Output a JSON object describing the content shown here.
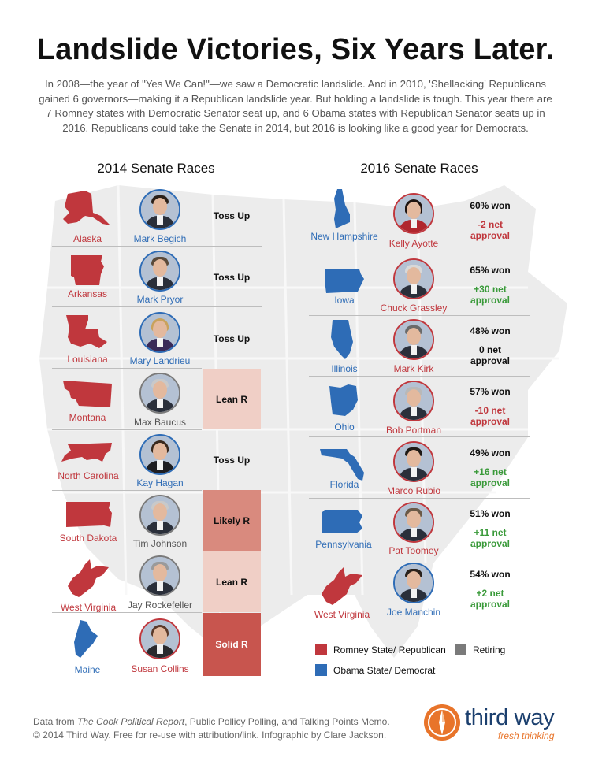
{
  "header": {
    "title": "Landslide Victories, Six Years Later.",
    "intro": "In 2008—the year of \"Yes We Can!\"—we saw a Democratic landslide. And in 2010, 'Shellacking' Republicans gained 6 governors—making it a Republican landslide year. But holding a landslide is tough. This year there are 7 Romney states with Democratic Senator seat up, and 6 Obama states with Republican Senator seats up in 2016. Republicans could take the Senate in 2014, but 2016 is looking like a good year for Democrats."
  },
  "races_2014": {
    "title": "2014 Senate Races",
    "rows": [
      {
        "state": "Alaska",
        "senator": "Mark Begich",
        "rating": "Toss Up",
        "state_party": "red",
        "senator_party": "blue"
      },
      {
        "state": "Arkansas",
        "senator": "Mark Pryor",
        "rating": "Toss Up",
        "state_party": "red",
        "senator_party": "blue"
      },
      {
        "state": "Louisiana",
        "senator": "Mary Landrieu",
        "rating": "Toss Up",
        "state_party": "red",
        "senator_party": "blue"
      },
      {
        "state": "Montana",
        "senator": "Max Baucus",
        "rating": "Lean R",
        "state_party": "red",
        "senator_party": "gray"
      },
      {
        "state": "North Carolina",
        "senator": "Kay Hagan",
        "rating": "Toss Up",
        "state_party": "red",
        "senator_party": "blue"
      },
      {
        "state": "South Dakota",
        "senator": "Tim Johnson",
        "rating": "Likely R",
        "state_party": "red",
        "senator_party": "gray"
      },
      {
        "state": "West Virginia",
        "senator": "Jay Rockefeller",
        "rating": "Lean R",
        "state_party": "red",
        "senator_party": "gray"
      },
      {
        "state": "Maine",
        "senator": "Susan Collins",
        "rating": "Solid R",
        "state_party": "blue",
        "senator_party": "red"
      }
    ]
  },
  "races_2016": {
    "title": "2016 Senate Races",
    "rows": [
      {
        "state": "New Hampshire",
        "senator": "Kelly Ayotte",
        "won": "60% won",
        "approval": "-2 net approval",
        "state_party": "blue",
        "senator_party": "red",
        "sign": "neg"
      },
      {
        "state": "Iowa",
        "senator": "Chuck Grassley",
        "won": "65% won",
        "approval": "+30 net approval",
        "state_party": "blue",
        "senator_party": "red",
        "sign": "pos"
      },
      {
        "state": "Illinois",
        "senator": "Mark Kirk",
        "won": "48% won",
        "approval": "0 net approval",
        "state_party": "blue",
        "senator_party": "red",
        "sign": "zero"
      },
      {
        "state": "Ohio",
        "senator": "Bob Portman",
        "won": "57% won",
        "approval": "-10 net approval",
        "state_party": "blue",
        "senator_party": "red",
        "sign": "neg"
      },
      {
        "state": "Florida",
        "senator": "Marco Rubio",
        "won": "49% won",
        "approval": "+16 net approval",
        "state_party": "blue",
        "senator_party": "red",
        "sign": "pos"
      },
      {
        "state": "Pennsylvania",
        "senator": "Pat Toomey",
        "won": "51% won",
        "approval": "+11 net approval",
        "state_party": "blue",
        "senator_party": "red",
        "sign": "pos"
      },
      {
        "state": "West Virginia",
        "senator": "Joe Manchin",
        "won": "54% won",
        "approval": "+2 net approval",
        "state_party": "red",
        "senator_party": "blue",
        "sign": "pos"
      }
    ]
  },
  "legend": {
    "republican": "Romney State/ Republican",
    "democrat": "Obama State/ Democrat",
    "retiring": "Retiring"
  },
  "footer": {
    "source_prefix": "Data from ",
    "source_italic": "The Cook Political Report",
    "source_suffix": ", Public Pollicy Polling, and Talking Points Memo.",
    "line2": "© 2014 Third Way. Free for re-use with attribution/link. Infographic by Clare Jackson."
  },
  "logo": {
    "name": "third way",
    "tagline": "fresh thinking"
  },
  "colors": {
    "republican": "#c0373d",
    "democrat": "#2e6cb6",
    "retiring": "#7a7a7a",
    "brand_orange": "#e8742a"
  }
}
